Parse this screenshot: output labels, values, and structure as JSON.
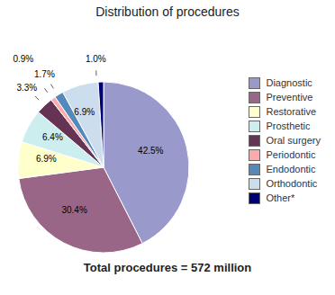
{
  "chart_data": {
    "type": "pie",
    "title": "Distribution of procedures",
    "subtitle": "Total procedures = 572 million",
    "categories": [
      "Diagnostic",
      "Preventive",
      "Restorative",
      "Prosthetic",
      "Oral surgery",
      "Periodontic",
      "Endodontic",
      "Orthodontic",
      "Other*"
    ],
    "values": [
      42.5,
      30.4,
      6.9,
      6.4,
      3.3,
      0.9,
      1.7,
      6.9,
      1.0
    ],
    "value_labels": [
      "42.5%",
      "30.4%",
      "6.9%",
      "6.4%",
      "3.3%",
      "0.9%",
      "1.7%",
      "6.9%",
      "1.0%"
    ],
    "colors": [
      "#9999cc",
      "#996688",
      "#ffffcc",
      "#cceeee",
      "#663355",
      "#ffaaaa",
      "#5588bb",
      "#ccddee",
      "#000077"
    ],
    "data_labels": true,
    "legend": "right"
  }
}
